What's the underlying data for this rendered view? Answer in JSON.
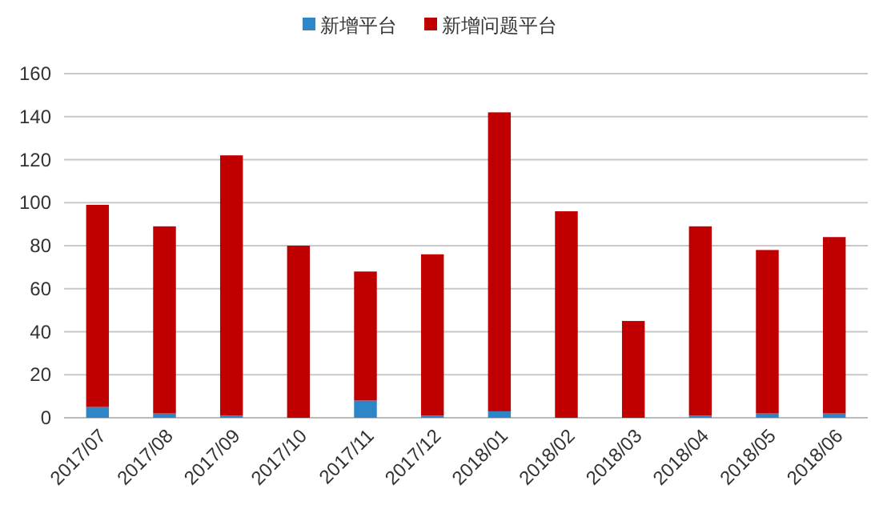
{
  "chart_data": {
    "type": "bar",
    "stacked": true,
    "categories": [
      "2017/07",
      "2017/08",
      "2017/09",
      "2017/10",
      "2017/11",
      "2017/12",
      "2018/01",
      "2018/02",
      "2018/03",
      "2018/04",
      "2018/05",
      "2018/06"
    ],
    "series": [
      {
        "name": "新增平台",
        "color": "#2e86c8",
        "values": [
          5,
          2,
          1,
          0,
          8,
          1,
          3,
          0,
          0,
          1,
          2,
          2
        ]
      },
      {
        "name": "新增问题平台",
        "color": "#c00000",
        "values": [
          94,
          87,
          121,
          80,
          60,
          75,
          139,
          96,
          45,
          88,
          76,
          82
        ]
      }
    ],
    "ylim": [
      0,
      160
    ],
    "yticks": [
      0,
      20,
      40,
      60,
      80,
      100,
      120,
      140,
      160
    ],
    "grid": "y",
    "legend": "top"
  }
}
